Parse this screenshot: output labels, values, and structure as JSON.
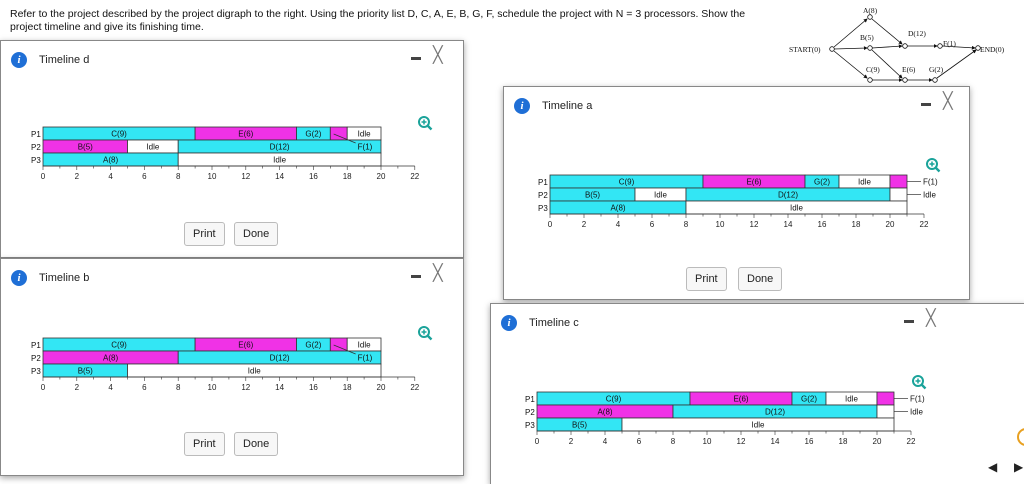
{
  "question": "Refer to the project described by the project digraph to the right. Using the priority list D, C, A, E, B, G, F, schedule the project with N = 3 processors. Show the project timeline and give its finishing time.",
  "digraph": {
    "nodes": [
      "START(0)",
      "A(8)",
      "B(5)",
      "C(9)",
      "D(12)",
      "E(6)",
      "G(2)",
      "F(1)",
      "END(0)"
    ]
  },
  "colors": {
    "cyan": "#33e6f4",
    "magenta": "#f032e6",
    "white": "#ffffff"
  },
  "windows": [
    {
      "id": "timeline-d",
      "title": "Timeline d",
      "print": "Print",
      "done": "Done",
      "processors": [
        "P1",
        "P2",
        "P3"
      ],
      "rows": [
        [
          {
            "label": "C(9)",
            "start": 0,
            "end": 9,
            "color": "cyan"
          },
          {
            "label": "E(6)",
            "start": 9,
            "end": 15,
            "color": "magenta"
          },
          {
            "label": "G(2)",
            "start": 15,
            "end": 17,
            "color": "cyan"
          },
          {
            "label": "",
            "start": 17,
            "end": 18,
            "color": "magenta"
          },
          {
            "label": "Idle",
            "start": 18,
            "end": 20,
            "color": "white"
          }
        ],
        [
          {
            "label": "B(5)",
            "start": 0,
            "end": 5,
            "color": "magenta"
          },
          {
            "label": "Idle",
            "start": 5,
            "end": 8,
            "color": "white"
          },
          {
            "label": "D(12)",
            "start": 8,
            "end": 20,
            "color": "cyan"
          }
        ],
        [
          {
            "label": "A(8)",
            "start": 0,
            "end": 8,
            "color": "cyan"
          },
          {
            "label": "Idle",
            "start": 8,
            "end": 20,
            "color": "white"
          }
        ]
      ],
      "outside": [],
      "inline_notes": [
        {
          "label": "F(1)",
          "row": 1,
          "x": 18.5
        }
      ]
    },
    {
      "id": "timeline-a",
      "title": "Timeline a",
      "print": "Print",
      "done": "Done",
      "processors": [
        "P1",
        "P2",
        "P3"
      ],
      "rows": [
        [
          {
            "label": "C(9)",
            "start": 0,
            "end": 9,
            "color": "cyan"
          },
          {
            "label": "E(6)",
            "start": 9,
            "end": 15,
            "color": "magenta"
          },
          {
            "label": "G(2)",
            "start": 15,
            "end": 17,
            "color": "cyan"
          },
          {
            "label": "Idle",
            "start": 17,
            "end": 20,
            "color": "white"
          },
          {
            "label": "",
            "start": 20,
            "end": 21,
            "color": "magenta"
          }
        ],
        [
          {
            "label": "B(5)",
            "start": 0,
            "end": 5,
            "color": "cyan"
          },
          {
            "label": "Idle",
            "start": 5,
            "end": 8,
            "color": "white"
          },
          {
            "label": "D(12)",
            "start": 8,
            "end": 20,
            "color": "cyan"
          },
          {
            "label": "",
            "start": 20,
            "end": 21,
            "color": "white"
          }
        ],
        [
          {
            "label": "A(8)",
            "start": 0,
            "end": 8,
            "color": "cyan"
          },
          {
            "label": "Idle",
            "start": 8,
            "end": 21,
            "color": "white"
          }
        ]
      ],
      "outside": [
        {
          "label": "F(1)",
          "row": 0
        },
        {
          "label": "Idle",
          "row": 1
        }
      ],
      "inline_notes": []
    },
    {
      "id": "timeline-b",
      "title": "Timeline b",
      "print": "Print",
      "done": "Done",
      "processors": [
        "P1",
        "P2",
        "P3"
      ],
      "rows": [
        [
          {
            "label": "C(9)",
            "start": 0,
            "end": 9,
            "color": "cyan"
          },
          {
            "label": "E(6)",
            "start": 9,
            "end": 15,
            "color": "magenta"
          },
          {
            "label": "G(2)",
            "start": 15,
            "end": 17,
            "color": "cyan"
          },
          {
            "label": "",
            "start": 17,
            "end": 18,
            "color": "magenta"
          },
          {
            "label": "Idle",
            "start": 18,
            "end": 20,
            "color": "white"
          }
        ],
        [
          {
            "label": "A(8)",
            "start": 0,
            "end": 8,
            "color": "magenta"
          },
          {
            "label": "D(12)",
            "start": 8,
            "end": 20,
            "color": "cyan"
          }
        ],
        [
          {
            "label": "B(5)",
            "start": 0,
            "end": 5,
            "color": "cyan"
          },
          {
            "label": "Idle",
            "start": 5,
            "end": 20,
            "color": "white"
          }
        ]
      ],
      "outside": [],
      "inline_notes": [
        {
          "label": "F(1)",
          "row": 1,
          "x": 18.5
        }
      ]
    },
    {
      "id": "timeline-c",
      "title": "Timeline c",
      "print": "",
      "done": "",
      "processors": [
        "P1",
        "P2",
        "P3"
      ],
      "rows": [
        [
          {
            "label": "C(9)",
            "start": 0,
            "end": 9,
            "color": "cyan"
          },
          {
            "label": "E(6)",
            "start": 9,
            "end": 15,
            "color": "magenta"
          },
          {
            "label": "G(2)",
            "start": 15,
            "end": 17,
            "color": "cyan"
          },
          {
            "label": "Idle",
            "start": 17,
            "end": 20,
            "color": "white"
          },
          {
            "label": "",
            "start": 20,
            "end": 21,
            "color": "magenta"
          }
        ],
        [
          {
            "label": "A(8)",
            "start": 0,
            "end": 8,
            "color": "magenta"
          },
          {
            "label": "D(12)",
            "start": 8,
            "end": 20,
            "color": "cyan"
          },
          {
            "label": "",
            "start": 20,
            "end": 21,
            "color": "white"
          }
        ],
        [
          {
            "label": "B(5)",
            "start": 0,
            "end": 5,
            "color": "cyan"
          },
          {
            "label": "Idle",
            "start": 5,
            "end": 21,
            "color": "white"
          }
        ]
      ],
      "outside": [
        {
          "label": "F(1)",
          "row": 0
        },
        {
          "label": "Idle",
          "row": 1
        }
      ],
      "inline_notes": []
    }
  ],
  "ticks": [
    0,
    2,
    4,
    6,
    8,
    10,
    12,
    14,
    16,
    18,
    20,
    22
  ],
  "close_glyph": "╳"
}
